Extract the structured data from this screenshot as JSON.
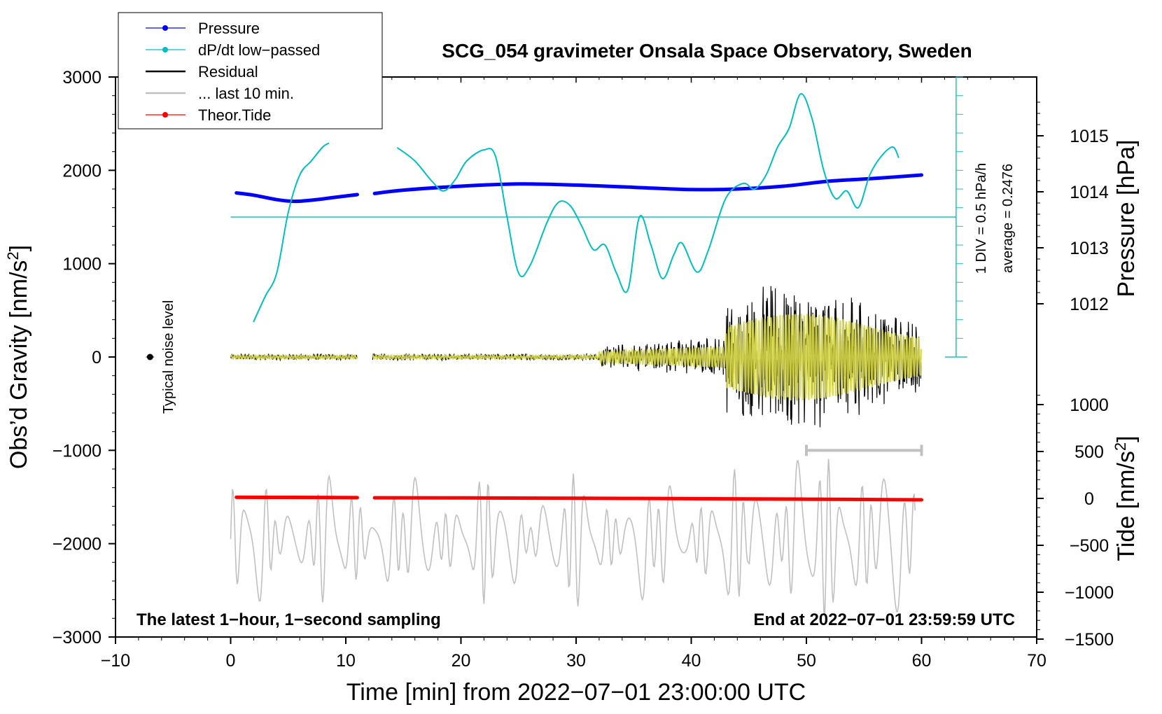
{
  "chart_data": {
    "type": "line",
    "title": "SCG_054 gravimeter Onsala Space Observatory, Sweden",
    "xlabel": "Time [min] from 2022−07−01 23:00:00 UTC",
    "ylabel_left_prefix": "Obs’d Gravity [nm/s",
    "ylabel_left_sup": "2",
    "ylabel_left_suffix": "]",
    "ylabel_pressure": "Pressure [hPa]",
    "ylabel_tide_prefix": "Tide [nm/s",
    "ylabel_tide_sup": "2",
    "ylabel_tide_suffix": "]",
    "xlim": [
      -10,
      70
    ],
    "ylim_left": [
      -3000,
      3000
    ],
    "x_ticks": [
      {
        "v": -10,
        "label": "−10"
      },
      {
        "v": 0,
        "label": "0"
      },
      {
        "v": 10,
        "label": "10"
      },
      {
        "v": 20,
        "label": "20"
      },
      {
        "v": 30,
        "label": "30"
      },
      {
        "v": 40,
        "label": "40"
      },
      {
        "v": 50,
        "label": "50"
      },
      {
        "v": 60,
        "label": "60"
      },
      {
        "v": 70,
        "label": "70"
      }
    ],
    "y_ticks_left": [
      {
        "v": 3000,
        "label": "3000"
      },
      {
        "v": 2000,
        "label": "2000"
      },
      {
        "v": 1000,
        "label": "1000"
      },
      {
        "v": 0,
        "label": "0"
      },
      {
        "v": -1000,
        "label": "−1000"
      },
      {
        "v": -2000,
        "label": "−2000"
      },
      {
        "v": -3000,
        "label": "−3000"
      }
    ],
    "pressure_axis": {
      "ticks": [
        {
          "v": 1015,
          "label": "1015"
        },
        {
          "v": 1014,
          "label": "1014"
        },
        {
          "v": 1013,
          "label": "1013"
        },
        {
          "v": 1012,
          "label": "1012"
        }
      ]
    },
    "tide_axis": {
      "ticks": [
        {
          "v": 1000,
          "label": "1000"
        },
        {
          "v": 500,
          "label": "500"
        },
        {
          "v": 0,
          "label": "0"
        },
        {
          "v": -500,
          "label": "−500"
        },
        {
          "v": -1000,
          "label": "−1000"
        },
        {
          "v": -1500,
          "label": "−1500"
        }
      ]
    },
    "dpdt_scale": {
      "label_div": "1 DIV = 0.5 hPa/h",
      "label_avg": "average = 0.2476",
      "x": 63,
      "baseline": 1500,
      "top": 3000,
      "bottom": 0,
      "divisions": 15
    },
    "legend": [
      {
        "label": "Pressure",
        "color": "#0000ff",
        "marker": true
      },
      {
        "label": "dP/dt low−passed",
        "color": "#00c0c0",
        "marker": true
      },
      {
        "label": "Residual",
        "color": "#000000",
        "marker": false
      },
      {
        "label": "... last 10 min.",
        "color": "#c0c0c0",
        "marker": false
      },
      {
        "label": "Theor.Tide",
        "color": "#ff0000",
        "marker": true
      }
    ],
    "noise_label": "Typical noise level",
    "noise_point": {
      "x": -7,
      "y": 0
    },
    "footer_left": "The latest 1−hour, 1−second sampling",
    "footer_right": "End at 2022−07−01 23:59:59 UTC",
    "last10_bracket": {
      "x_start": 50,
      "x_end": 60,
      "y": -1000
    },
    "series": [
      {
        "name": "Pressure",
        "axis": "pressure_hpa",
        "color": "#0000ff",
        "segments": [
          [
            [
              0.5,
              1013.98
            ],
            [
              2,
              1013.94
            ],
            [
              4,
              1013.86
            ],
            [
              5.5,
              1013.83
            ],
            [
              7,
              1013.85
            ],
            [
              9,
              1013.9
            ],
            [
              11,
              1013.95
            ]
          ],
          [
            [
              12.5,
              1013.97
            ],
            [
              15,
              1014.03
            ],
            [
              20,
              1014.1
            ],
            [
              25,
              1014.14
            ],
            [
              30,
              1014.12
            ],
            [
              35,
              1014.08
            ],
            [
              40,
              1014.04
            ],
            [
              44,
              1014.05
            ],
            [
              48,
              1014.1
            ],
            [
              52,
              1014.19
            ],
            [
              56,
              1014.24
            ],
            [
              60,
              1014.3
            ]
          ]
        ]
      },
      {
        "name": "dP/dt low-passed",
        "axis": "left",
        "color": "#00c0c0",
        "segments": [
          [
            [
              2,
              380
            ],
            [
              3,
              650
            ],
            [
              4,
              900
            ],
            [
              5,
              1550
            ],
            [
              6,
              1950
            ],
            [
              7,
              2100
            ],
            [
              8,
              2250
            ],
            [
              8.5,
              2290
            ]
          ],
          [
            [
              14.5,
              2240
            ],
            [
              16,
              2100
            ],
            [
              17.5,
              1880
            ],
            [
              18.5,
              1780
            ],
            [
              19.5,
              1900
            ],
            [
              20.5,
              2100
            ],
            [
              22,
              2220
            ],
            [
              23,
              2150
            ],
            [
              24,
              1500
            ],
            [
              25,
              900
            ],
            [
              26,
              980
            ],
            [
              27.5,
              1450
            ],
            [
              28.5,
              1660
            ],
            [
              29.5,
              1620
            ],
            [
              30.5,
              1400
            ],
            [
              31.5,
              1150
            ],
            [
              32.5,
              1200
            ],
            [
              33.5,
              900
            ],
            [
              34.5,
              720
            ],
            [
              35.5,
              1500
            ],
            [
              36.5,
              1200
            ],
            [
              37.5,
              840
            ],
            [
              38.5,
              1100
            ],
            [
              39.2,
              1220
            ],
            [
              40.5,
              910
            ],
            [
              41.5,
              1150
            ],
            [
              43,
              1700
            ],
            [
              44.5,
              1860
            ],
            [
              45.5,
              1800
            ],
            [
              46.5,
              1950
            ],
            [
              47.5,
              2250
            ],
            [
              48.5,
              2450
            ],
            [
              49.5,
              2820
            ],
            [
              50.5,
              2550
            ],
            [
              51.5,
              2000
            ],
            [
              52.5,
              1700
            ],
            [
              53.5,
              1780
            ],
            [
              54.5,
              1600
            ],
            [
              55.5,
              1950
            ],
            [
              56.5,
              2150
            ],
            [
              57.5,
              2250
            ],
            [
              58,
              2140
            ]
          ]
        ]
      },
      {
        "name": "Theor.Tide",
        "axis": "tide",
        "color": "#ff0000",
        "segments": [
          [
            [
              0.5,
              12
            ],
            [
              5,
              11
            ],
            [
              11,
              8
            ]
          ],
          [
            [
              12.5,
              7
            ],
            [
              20,
              5
            ],
            [
              30,
              2
            ],
            [
              40,
              -3
            ],
            [
              50,
              -8
            ],
            [
              60,
              -15
            ]
          ]
        ]
      }
    ]
  }
}
